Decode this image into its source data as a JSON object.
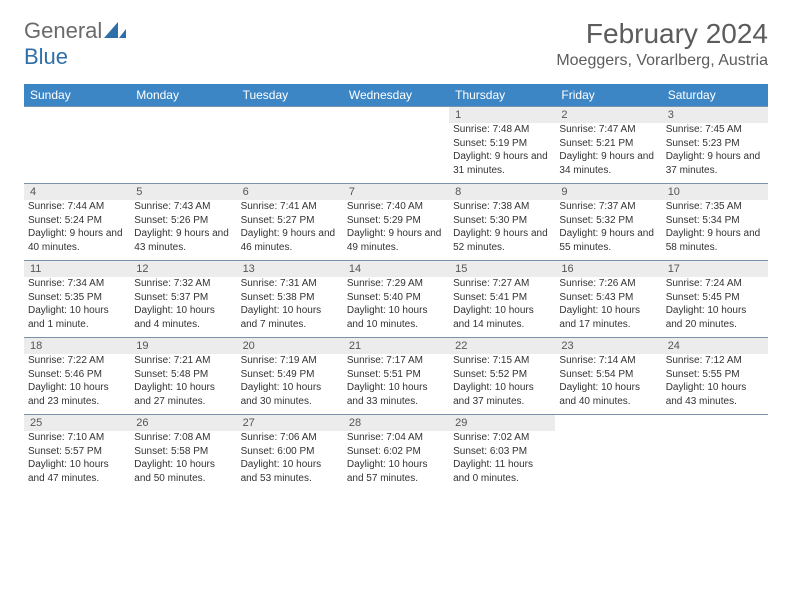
{
  "brand": {
    "part1": "General",
    "part2": "Blue"
  },
  "title": "February 2024",
  "location": "Moeggers, Vorarlberg, Austria",
  "colors": {
    "header_bg": "#3d86c6",
    "header_text": "#ffffff",
    "daynum_bg": "#ececec",
    "border": "#7a93ab",
    "logo_gray": "#6a6a6a",
    "logo_blue": "#2f6fa8",
    "title_color": "#5c5c5c"
  },
  "dow": [
    "Sunday",
    "Monday",
    "Tuesday",
    "Wednesday",
    "Thursday",
    "Friday",
    "Saturday"
  ],
  "weeks": [
    [
      null,
      null,
      null,
      null,
      {
        "n": "1",
        "sr": "Sunrise: 7:48 AM",
        "ss": "Sunset: 5:19 PM",
        "dl": "Daylight: 9 hours and 31 minutes."
      },
      {
        "n": "2",
        "sr": "Sunrise: 7:47 AM",
        "ss": "Sunset: 5:21 PM",
        "dl": "Daylight: 9 hours and 34 minutes."
      },
      {
        "n": "3",
        "sr": "Sunrise: 7:45 AM",
        "ss": "Sunset: 5:23 PM",
        "dl": "Daylight: 9 hours and 37 minutes."
      }
    ],
    [
      {
        "n": "4",
        "sr": "Sunrise: 7:44 AM",
        "ss": "Sunset: 5:24 PM",
        "dl": "Daylight: 9 hours and 40 minutes."
      },
      {
        "n": "5",
        "sr": "Sunrise: 7:43 AM",
        "ss": "Sunset: 5:26 PM",
        "dl": "Daylight: 9 hours and 43 minutes."
      },
      {
        "n": "6",
        "sr": "Sunrise: 7:41 AM",
        "ss": "Sunset: 5:27 PM",
        "dl": "Daylight: 9 hours and 46 minutes."
      },
      {
        "n": "7",
        "sr": "Sunrise: 7:40 AM",
        "ss": "Sunset: 5:29 PM",
        "dl": "Daylight: 9 hours and 49 minutes."
      },
      {
        "n": "8",
        "sr": "Sunrise: 7:38 AM",
        "ss": "Sunset: 5:30 PM",
        "dl": "Daylight: 9 hours and 52 minutes."
      },
      {
        "n": "9",
        "sr": "Sunrise: 7:37 AM",
        "ss": "Sunset: 5:32 PM",
        "dl": "Daylight: 9 hours and 55 minutes."
      },
      {
        "n": "10",
        "sr": "Sunrise: 7:35 AM",
        "ss": "Sunset: 5:34 PM",
        "dl": "Daylight: 9 hours and 58 minutes."
      }
    ],
    [
      {
        "n": "11",
        "sr": "Sunrise: 7:34 AM",
        "ss": "Sunset: 5:35 PM",
        "dl": "Daylight: 10 hours and 1 minute."
      },
      {
        "n": "12",
        "sr": "Sunrise: 7:32 AM",
        "ss": "Sunset: 5:37 PM",
        "dl": "Daylight: 10 hours and 4 minutes."
      },
      {
        "n": "13",
        "sr": "Sunrise: 7:31 AM",
        "ss": "Sunset: 5:38 PM",
        "dl": "Daylight: 10 hours and 7 minutes."
      },
      {
        "n": "14",
        "sr": "Sunrise: 7:29 AM",
        "ss": "Sunset: 5:40 PM",
        "dl": "Daylight: 10 hours and 10 minutes."
      },
      {
        "n": "15",
        "sr": "Sunrise: 7:27 AM",
        "ss": "Sunset: 5:41 PM",
        "dl": "Daylight: 10 hours and 14 minutes."
      },
      {
        "n": "16",
        "sr": "Sunrise: 7:26 AM",
        "ss": "Sunset: 5:43 PM",
        "dl": "Daylight: 10 hours and 17 minutes."
      },
      {
        "n": "17",
        "sr": "Sunrise: 7:24 AM",
        "ss": "Sunset: 5:45 PM",
        "dl": "Daylight: 10 hours and 20 minutes."
      }
    ],
    [
      {
        "n": "18",
        "sr": "Sunrise: 7:22 AM",
        "ss": "Sunset: 5:46 PM",
        "dl": "Daylight: 10 hours and 23 minutes."
      },
      {
        "n": "19",
        "sr": "Sunrise: 7:21 AM",
        "ss": "Sunset: 5:48 PM",
        "dl": "Daylight: 10 hours and 27 minutes."
      },
      {
        "n": "20",
        "sr": "Sunrise: 7:19 AM",
        "ss": "Sunset: 5:49 PM",
        "dl": "Daylight: 10 hours and 30 minutes."
      },
      {
        "n": "21",
        "sr": "Sunrise: 7:17 AM",
        "ss": "Sunset: 5:51 PM",
        "dl": "Daylight: 10 hours and 33 minutes."
      },
      {
        "n": "22",
        "sr": "Sunrise: 7:15 AM",
        "ss": "Sunset: 5:52 PM",
        "dl": "Daylight: 10 hours and 37 minutes."
      },
      {
        "n": "23",
        "sr": "Sunrise: 7:14 AM",
        "ss": "Sunset: 5:54 PM",
        "dl": "Daylight: 10 hours and 40 minutes."
      },
      {
        "n": "24",
        "sr": "Sunrise: 7:12 AM",
        "ss": "Sunset: 5:55 PM",
        "dl": "Daylight: 10 hours and 43 minutes."
      }
    ],
    [
      {
        "n": "25",
        "sr": "Sunrise: 7:10 AM",
        "ss": "Sunset: 5:57 PM",
        "dl": "Daylight: 10 hours and 47 minutes."
      },
      {
        "n": "26",
        "sr": "Sunrise: 7:08 AM",
        "ss": "Sunset: 5:58 PM",
        "dl": "Daylight: 10 hours and 50 minutes."
      },
      {
        "n": "27",
        "sr": "Sunrise: 7:06 AM",
        "ss": "Sunset: 6:00 PM",
        "dl": "Daylight: 10 hours and 53 minutes."
      },
      {
        "n": "28",
        "sr": "Sunrise: 7:04 AM",
        "ss": "Sunset: 6:02 PM",
        "dl": "Daylight: 10 hours and 57 minutes."
      },
      {
        "n": "29",
        "sr": "Sunrise: 7:02 AM",
        "ss": "Sunset: 6:03 PM",
        "dl": "Daylight: 11 hours and 0 minutes."
      },
      null,
      null
    ]
  ]
}
